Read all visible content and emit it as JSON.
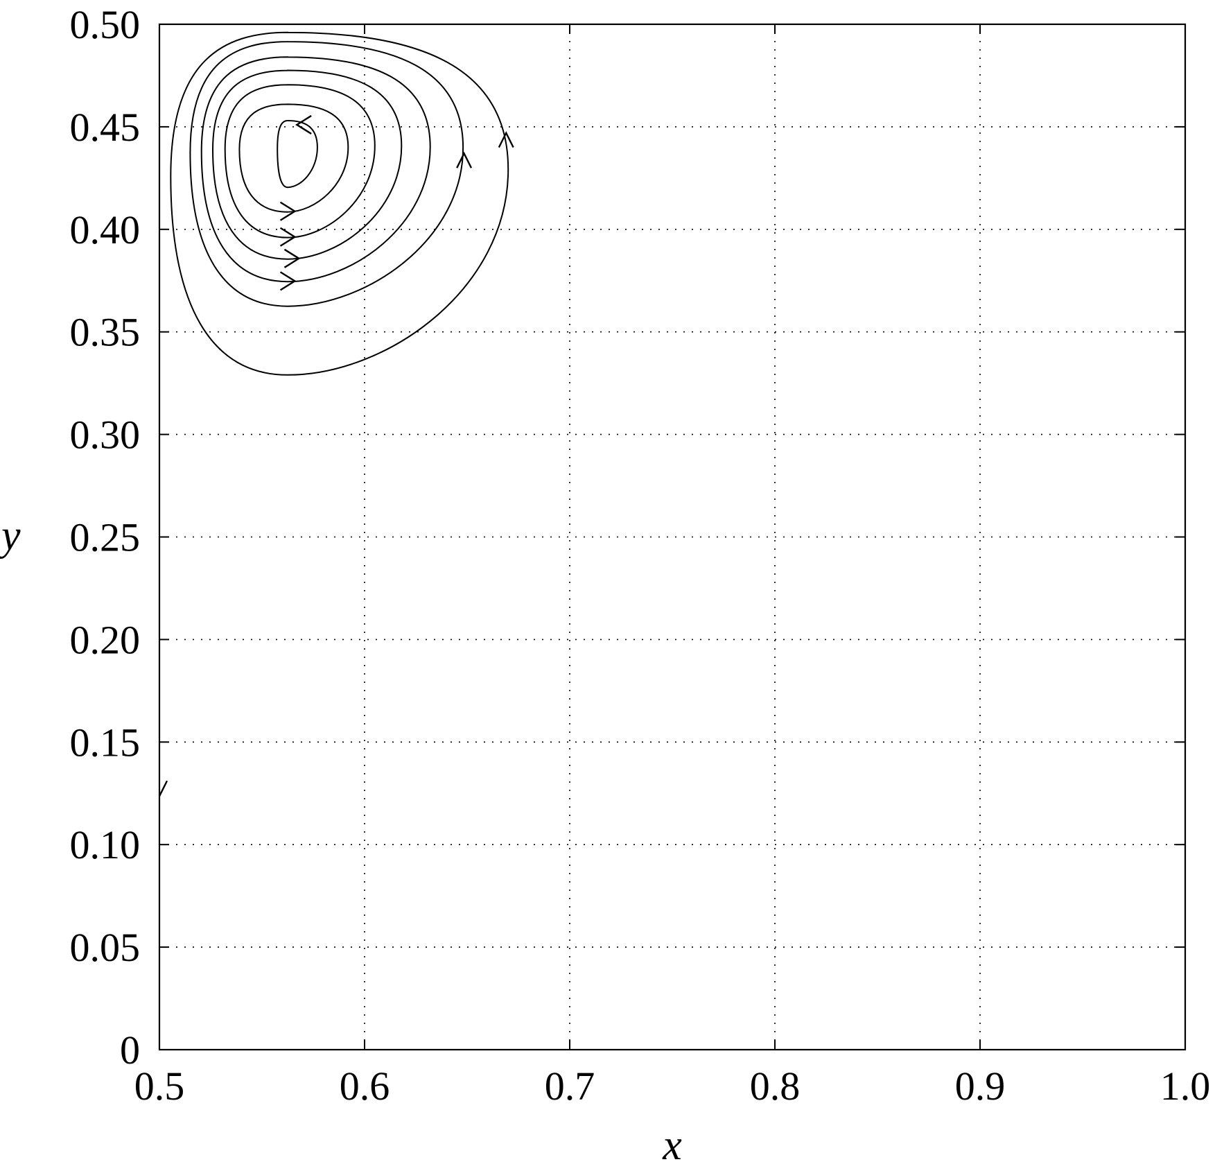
{
  "chart_data": {
    "type": "line",
    "subtype": "streamline-contour",
    "xlabel": "x",
    "ylabel": "y",
    "xlim": [
      0.5,
      1.0
    ],
    "ylim": [
      0,
      0.5
    ],
    "xticks": [
      0.5,
      0.6,
      0.7,
      0.8,
      0.9,
      1.0
    ],
    "xtick_labels": [
      "0.5",
      "0.6",
      "0.7",
      "0.8",
      "0.9",
      "1.0"
    ],
    "yticks": [
      0,
      0.05,
      0.1,
      0.15,
      0.2,
      0.25,
      0.3,
      0.35,
      0.4,
      0.45,
      0.5
    ],
    "ytick_labels": [
      "0",
      "0.05",
      "0.10",
      "0.15",
      "0.20",
      "0.25",
      "0.30",
      "0.35",
      "0.40",
      "0.45",
      "0.50"
    ],
    "grid": true,
    "grid_style": "dotted",
    "line_color": "#000000",
    "vortex_center": [
      0.5625,
      0.437
    ],
    "contours": [
      {
        "left": 0.5575,
        "right": 0.577,
        "bottom": 0.4205,
        "top": 0.453,
        "arrow": {
          "x": 0.567,
          "y": 0.451,
          "dir": "left"
        }
      },
      {
        "left": 0.539,
        "right": 0.592,
        "bottom": 0.4085,
        "top": 0.461,
        "arrow": {
          "x": 0.566,
          "y": 0.4088,
          "dir": "right"
        }
      },
      {
        "left": 0.532,
        "right": 0.605,
        "bottom": 0.396,
        "top": 0.4705,
        "arrow": {
          "x": 0.566,
          "y": 0.3963,
          "dir": "right"
        }
      },
      {
        "left": 0.526,
        "right": 0.618,
        "bottom": 0.3855,
        "top": 0.4775,
        "arrow": {
          "x": 0.568,
          "y": 0.3858,
          "dir": "right"
        }
      },
      {
        "left": 0.5205,
        "right": 0.632,
        "bottom": 0.3745,
        "top": 0.484,
        "arrow": {
          "x": 0.566,
          "y": 0.3748,
          "dir": "right"
        }
      },
      {
        "left": 0.515,
        "right": 0.648,
        "bottom": 0.3625,
        "top": 0.4915,
        "arrow": {
          "x": 0.6485,
          "y": 0.437,
          "dir": "up"
        }
      },
      {
        "left": 0.5055,
        "right": 0.67,
        "bottom": 0.329,
        "top": 0.496,
        "arrow": {
          "x": 0.669,
          "y": 0.447,
          "dir": "up"
        }
      }
    ],
    "extra_marks": [
      {
        "type": "arrow-stub",
        "x": 0.5,
        "y": 0.127
      }
    ]
  }
}
